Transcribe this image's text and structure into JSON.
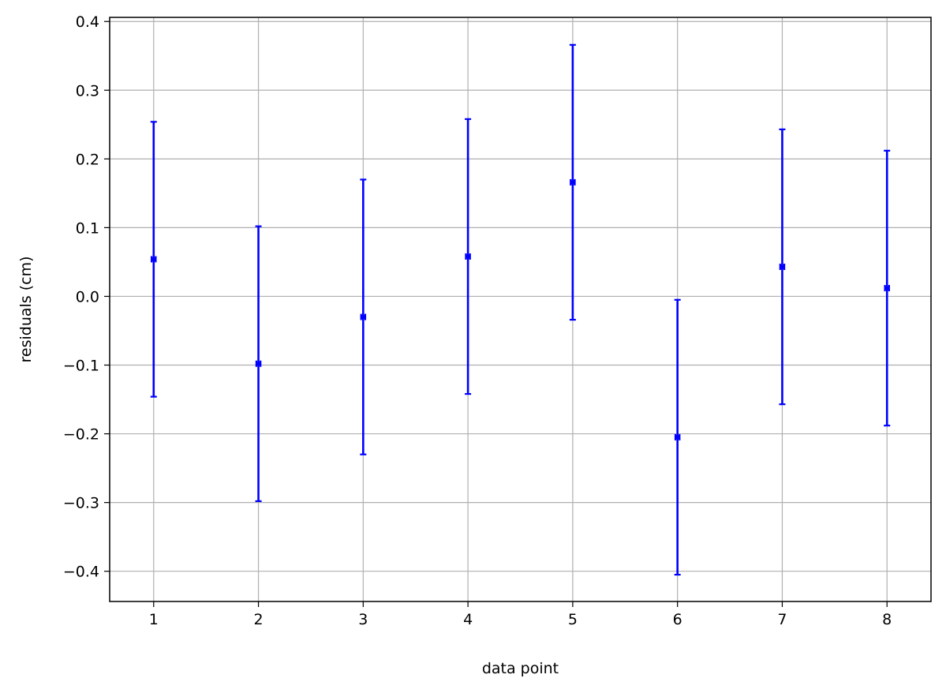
{
  "chart_data": {
    "type": "scatter",
    "title": "",
    "xlabel": "data point",
    "ylabel": "residuals (cm)",
    "xlim": [
      0.58,
      8.42
    ],
    "ylim": [
      -0.444,
      0.406
    ],
    "x_ticks": [
      1,
      2,
      3,
      4,
      5,
      6,
      7,
      8
    ],
    "x_tick_labels": [
      "1",
      "2",
      "3",
      "4",
      "5",
      "6",
      "7",
      "8"
    ],
    "y_ticks": [
      -0.4,
      -0.3,
      -0.2,
      -0.1,
      0.0,
      0.1,
      0.2,
      0.3,
      0.4
    ],
    "y_tick_labels": [
      "−0.4",
      "−0.3",
      "−0.2",
      "−0.1",
      "0.0",
      "0.1",
      "0.2",
      "0.3",
      "0.4"
    ],
    "grid": true,
    "marker_color": "#0000ff",
    "series": [
      {
        "x": [
          1,
          2,
          3,
          4,
          5,
          6,
          7,
          8
        ],
        "values": [
          0.054,
          -0.098,
          -0.03,
          0.058,
          0.166,
          -0.205,
          0.043,
          0.012
        ],
        "y_err": [
          0.2,
          0.2,
          0.2,
          0.2,
          0.2,
          0.2,
          0.2,
          0.2
        ],
        "x_err": [
          0.02,
          0.02,
          0.02,
          0.02,
          0.02,
          0.02,
          0.02,
          0.02
        ]
      }
    ]
  }
}
